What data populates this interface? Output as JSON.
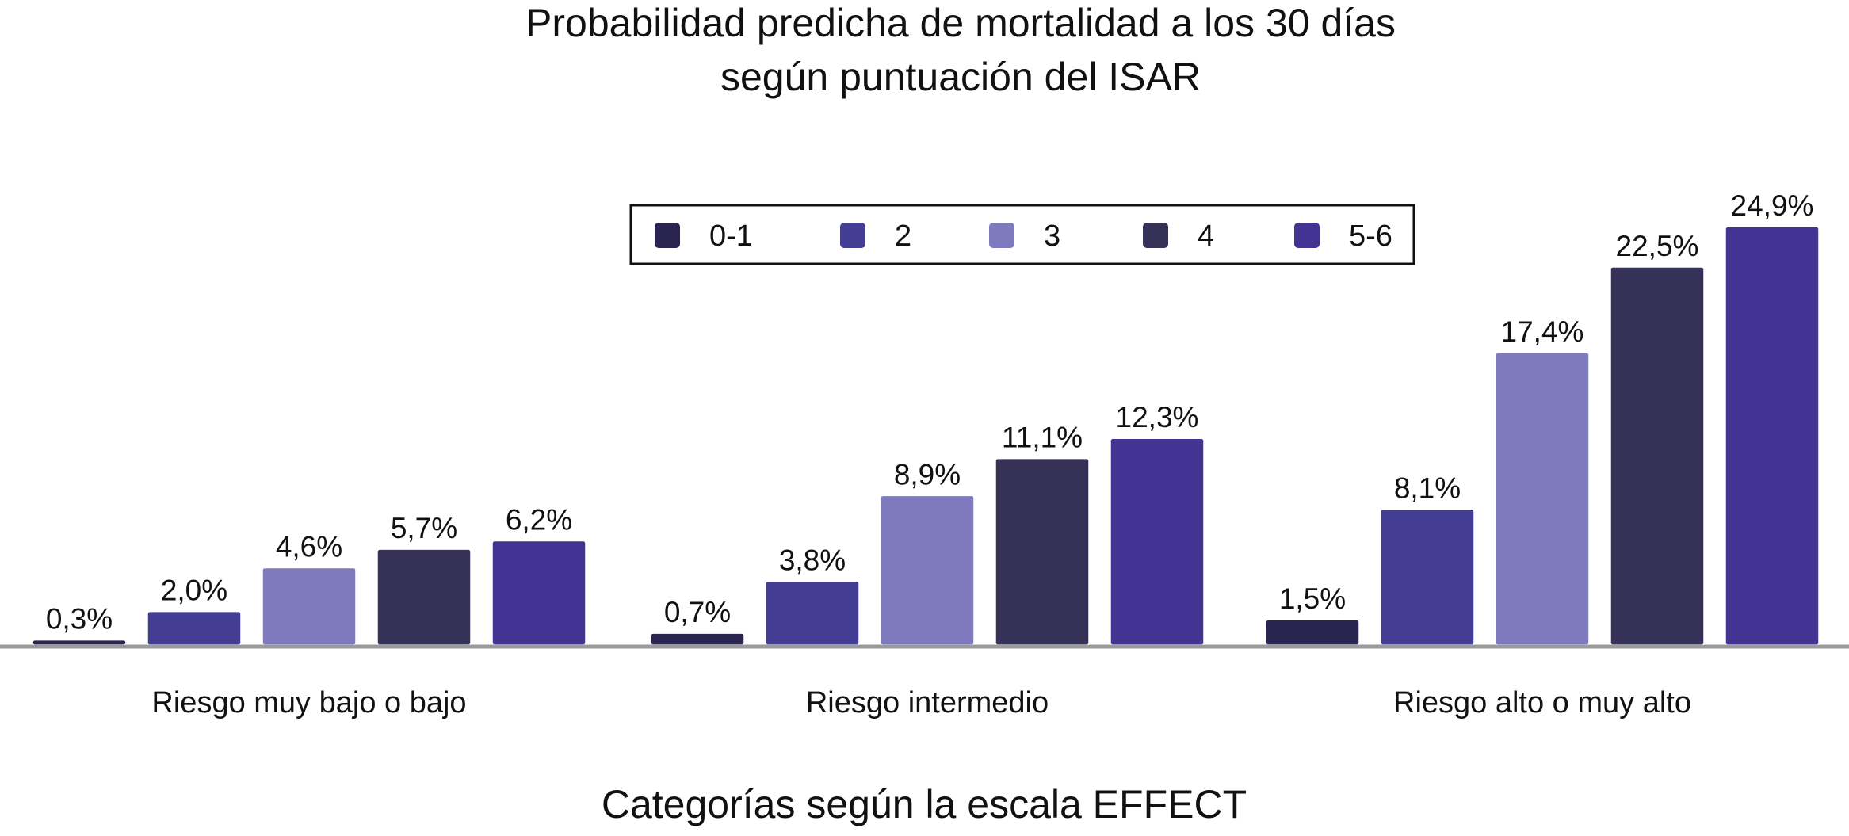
{
  "chart_data": {
    "type": "bar",
    "title": [
      "Probabilidad predicha de mortalidad a los 30 días",
      "según puntuación del ISAR"
    ],
    "xlabel": "Categorías según la escala EFFECT",
    "ylabel": "",
    "ylim": [
      0,
      26
    ],
    "grid": false,
    "legend_position": "top-center",
    "categories": [
      "Riesgo muy bajo o bajo",
      "Riesgo intermedio",
      "Riesgo alto o muy alto"
    ],
    "series": [
      {
        "name": "0-1",
        "color": "#2a2450",
        "values": [
          0.3,
          0.7,
          1.5
        ],
        "labels": [
          "0,3%",
          "0,7%",
          "1,5%"
        ]
      },
      {
        "name": "2",
        "color": "#433d93",
        "values": [
          2.0,
          3.8,
          8.1
        ],
        "labels": [
          "2,0%",
          "3,8%",
          "8,1%"
        ]
      },
      {
        "name": "3",
        "color": "#7f79bd",
        "values": [
          4.6,
          8.9,
          17.4
        ],
        "labels": [
          "4,6%",
          "8,9%",
          "17,4%"
        ]
      },
      {
        "name": "4",
        "color": "#363157",
        "values": [
          5.7,
          11.1,
          22.5
        ],
        "labels": [
          "5,7%",
          "11,1%",
          "22,5%"
        ]
      },
      {
        "name": "5-6",
        "color": "#433494",
        "values": [
          6.2,
          12.3,
          24.9
        ],
        "labels": [
          "6,2%",
          "12,3%",
          "24,9%"
        ]
      }
    ]
  }
}
